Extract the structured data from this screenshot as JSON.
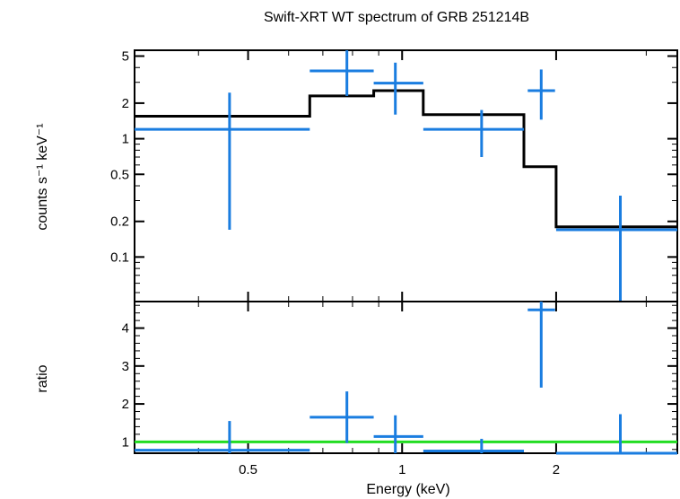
{
  "chart_data": {
    "title": "Swift-XRT WT spectrum of GRB 251214B",
    "xlabel": "Energy (keV)",
    "x_scale": "log",
    "xlim": [
      0.3,
      3.45
    ],
    "x_ticks": [
      {
        "value": 0.5,
        "label": "0.5"
      },
      {
        "value": 1,
        "label": "1"
      },
      {
        "value": 2,
        "label": "2"
      }
    ],
    "panels": [
      {
        "id": "spectrum",
        "type": "errorbar",
        "ylabel": "counts s⁻¹ keV⁻¹",
        "y_scale": "log",
        "ylim": [
          0.042,
          5.6
        ],
        "y_ticks": [
          {
            "value": 5,
            "label": "5"
          },
          {
            "value": 2,
            "label": "2"
          },
          {
            "value": 1,
            "label": "1"
          },
          {
            "value": 0.5,
            "label": "0.5"
          },
          {
            "value": 0.2,
            "label": "0.2"
          },
          {
            "value": 0.1,
            "label": "0.1"
          }
        ],
        "data": {
          "name": "data",
          "color": "#1a7de0",
          "points": [
            {
              "x": 0.46,
              "xlo": 0.3,
              "xhi": 0.66,
              "y": 1.2,
              "ylo": 0.17,
              "yhi": 2.45
            },
            {
              "x": 0.78,
              "xlo": 0.66,
              "xhi": 0.88,
              "y": 3.75,
              "ylo": 2.3,
              "yhi": 5.6
            },
            {
              "x": 0.97,
              "xlo": 0.88,
              "xhi": 1.1,
              "y": 2.95,
              "ylo": 1.6,
              "yhi": 4.4
            },
            {
              "x": 1.43,
              "xlo": 1.1,
              "xhi": 1.73,
              "y": 1.2,
              "ylo": 0.7,
              "yhi": 1.75
            },
            {
              "x": 1.87,
              "xlo": 1.76,
              "xhi": 1.99,
              "y": 2.55,
              "ylo": 1.45,
              "yhi": 3.85
            },
            {
              "x": 2.67,
              "xlo": 2.0,
              "xhi": 3.45,
              "y": 0.17,
              "ylo": 0.042,
              "yhi": 0.33
            }
          ]
        },
        "model": {
          "name": "model",
          "color": "#000000",
          "steps": [
            {
              "xlo": 0.3,
              "xhi": 0.66,
              "y": 1.55
            },
            {
              "xlo": 0.66,
              "xhi": 0.88,
              "y": 2.3
            },
            {
              "xlo": 0.88,
              "xhi": 1.1,
              "y": 2.55
            },
            {
              "xlo": 1.1,
              "xhi": 1.73,
              "y": 1.6
            },
            {
              "xlo": 1.73,
              "xhi": 2.0,
              "y": 0.58
            },
            {
              "xlo": 2.0,
              "xhi": 3.45,
              "y": 0.18
            }
          ]
        }
      },
      {
        "id": "ratio",
        "type": "errorbar",
        "ylabel": "ratio",
        "y_scale": "linear",
        "ylim": [
          0.7,
          4.7
        ],
        "y_ticks": [
          {
            "value": 1,
            "label": "1"
          },
          {
            "value": 2,
            "label": "2"
          },
          {
            "value": 3,
            "label": "3"
          },
          {
            "value": 4,
            "label": "4"
          }
        ],
        "data": {
          "name": "ratio",
          "color": "#1a7de0",
          "points": [
            {
              "x": 0.46,
              "xlo": 0.3,
              "xhi": 0.66,
              "y": 0.78,
              "ylo": 0.7,
              "yhi": 1.55
            },
            {
              "x": 0.78,
              "xlo": 0.66,
              "xhi": 0.88,
              "y": 1.65,
              "ylo": 0.97,
              "yhi": 2.33
            },
            {
              "x": 0.97,
              "xlo": 0.88,
              "xhi": 1.1,
              "y": 1.14,
              "ylo": 0.7,
              "yhi": 1.7
            },
            {
              "x": 1.43,
              "xlo": 1.1,
              "xhi": 1.73,
              "y": 0.76,
              "ylo": 0.7,
              "yhi": 1.08
            },
            {
              "x": 1.87,
              "xlo": 1.76,
              "xhi": 1.99,
              "y": 4.48,
              "ylo": 2.43,
              "yhi": 4.7
            },
            {
              "x": 2.67,
              "xlo": 2.0,
              "xhi": 3.45,
              "y": 0.7,
              "ylo": 0.7,
              "yhi": 1.73
            }
          ]
        },
        "reference_line": {
          "y": 1,
          "color": "#22dd22"
        }
      }
    ]
  }
}
